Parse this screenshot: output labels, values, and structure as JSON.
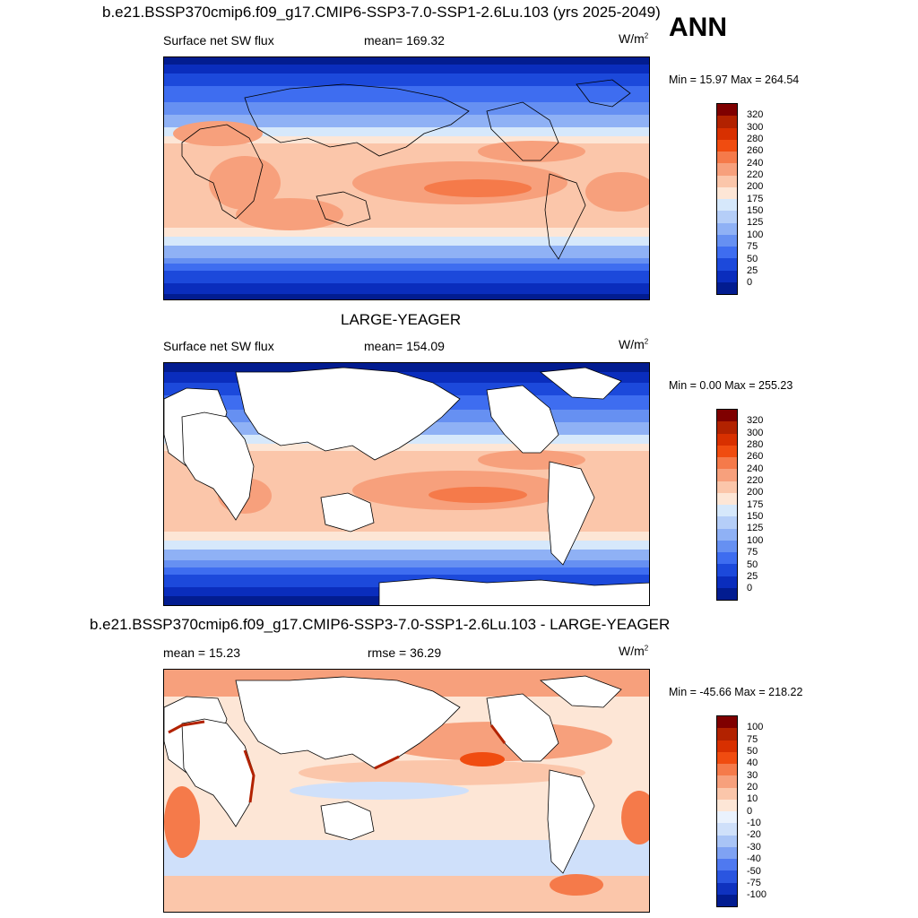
{
  "season": "ANN",
  "panels": [
    {
      "title": "b.e21.BSSP370cmip6.f09_g17.CMIP6-SSP3-7.0-SSP1-2.6Lu.103 (yrs 2025-2049)",
      "left_label": "Surface net SW flux",
      "center_label": "mean= 169.32",
      "units_base": "W/m",
      "units_exp": "2",
      "min_label": "Min =  15.97 Max = 264.54",
      "colorbar": {
        "ticks": [
          "320",
          "300",
          "280",
          "260",
          "240",
          "220",
          "200",
          "175",
          "150",
          "125",
          "100",
          "75",
          "50",
          "25",
          "0"
        ],
        "colors": [
          "#7f0000",
          "#b22200",
          "#d83000",
          "#f04c10",
          "#f57a4a",
          "#f7a07c",
          "#fbc6aa",
          "#fde6d6",
          "#d6e8fb",
          "#b5cef8",
          "#8fb1f5",
          "#6690f2",
          "#3e6df0",
          "#1c49db",
          "#0a2dbd",
          "#021c90"
        ]
      }
    },
    {
      "title": "LARGE-YEAGER",
      "left_label": "Surface net SW flux",
      "center_label": "mean= 154.09",
      "units_base": "W/m",
      "units_exp": "2",
      "min_label": "Min =   0.00 Max = 255.23",
      "colorbar": {
        "ticks": [
          "320",
          "300",
          "280",
          "260",
          "240",
          "220",
          "200",
          "175",
          "150",
          "125",
          "100",
          "75",
          "50",
          "25",
          "0"
        ],
        "colors": [
          "#7f0000",
          "#b22200",
          "#d83000",
          "#f04c10",
          "#f57a4a",
          "#f7a07c",
          "#fbc6aa",
          "#fde6d6",
          "#d6e8fb",
          "#b5cef8",
          "#8fb1f5",
          "#6690f2",
          "#3e6df0",
          "#1c49db",
          "#0a2dbd",
          "#021c90"
        ]
      }
    },
    {
      "title": "b.e21.BSSP370cmip6.f09_g17.CMIP6-SSP3-7.0-SSP1-2.6Lu.103 - LARGE-YEAGER",
      "left_label": "mean =  15.23",
      "center_label": "rmse =  36.29",
      "units_base": "W/m",
      "units_exp": "2",
      "min_label": "Min = -45.66 Max = 218.22",
      "colorbar": {
        "ticks": [
          "100",
          "75",
          "50",
          "40",
          "30",
          "20",
          "10",
          "0",
          "-10",
          "-20",
          "-30",
          "-40",
          "-50",
          "-75",
          "-100"
        ],
        "colors": [
          "#7f0000",
          "#b22200",
          "#d83000",
          "#f04c10",
          "#f57a4a",
          "#f7a07c",
          "#fbc6aa",
          "#fde6d6",
          "#eaf2fd",
          "#cfe0fa",
          "#a9c4f6",
          "#7fa2f3",
          "#4f79f0",
          "#2a55e0",
          "#0f32bf",
          "#021c90"
        ]
      }
    }
  ]
}
